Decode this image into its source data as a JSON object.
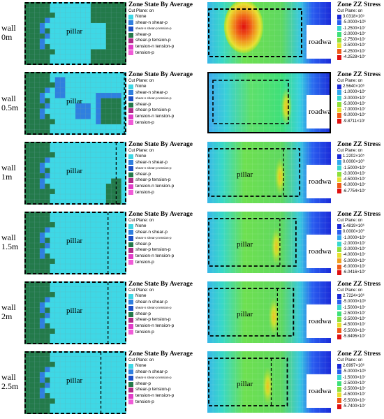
{
  "state_legend": {
    "title": "Zone State By Average",
    "subtitle": "Cut Plane: on",
    "items": [
      {
        "label": "None",
        "color": "#3ed8e6",
        "small": false
      },
      {
        "label": "shear-n shear-p",
        "color": "#2f7fe0",
        "small": false
      },
      {
        "label": "shear-n shear-p tension-p",
        "color": "#1c4fc8",
        "small": true
      },
      {
        "label": "shear-p",
        "color": "#237a4a",
        "small": false
      },
      {
        "label": "shear-p tension-p",
        "color": "#b02a8c",
        "small": false
      },
      {
        "label": "tension-n tension-p",
        "color": "#e03cc8",
        "small": false
      },
      {
        "label": "tension-p",
        "color": "#f05cd8",
        "small": false
      }
    ],
    "items_simple": [
      {
        "label": "None",
        "color": "#3ed8e6",
        "small": false
      },
      {
        "label": "shear-n shear-p",
        "color": "#2f7fe0",
        "small": false
      },
      {
        "label": "shear-n shear-p tension-p",
        "color": "#1c4fc8",
        "small": true
      },
      {
        "label": "shear-p",
        "color": "#237a4a",
        "small": false
      },
      {
        "label": "shear-p tension-p",
        "color": "#b02a8c",
        "small": false
      },
      {
        "label": "tension-n tension-p",
        "color": "#e03cc8",
        "small": false
      },
      {
        "label": "tension-p",
        "color": "#f05cd8",
        "small": false
      }
    ]
  },
  "stress_legend_colors": [
    "#1b2bd8",
    "#2a5ef0",
    "#2fa8f0",
    "#38d8d0",
    "#3ee07a",
    "#8ee03a",
    "#e8e030",
    "#f0a020",
    "#f05a18",
    "#e01010"
  ],
  "rows": [
    {
      "wall": "wall",
      "width": "0m",
      "pillar": "pillar",
      "roadway": "roadway",
      "stress_title": "Zone ZZ Stress",
      "stress_sub": "Cut Plane: on",
      "stress_values": [
        "3.0318×10⁵",
        "-5.0000×10⁶",
        "-1.2500×10⁷",
        "-2.0000×10⁷",
        "-2.7500×10⁷",
        "-3.5000×10⁷",
        "-4.2500×10⁷",
        "-4.2528×10⁷"
      ],
      "state_items": 7
    },
    {
      "wall": "wall",
      "width": "0.5m",
      "pillar": "pillar",
      "roadway": "roadway",
      "stress_title": "Zone ZZ Stress",
      "stress_sub": "Cut Plane: on",
      "stress_values": [
        "2.5640×10⁶",
        "-1.0000×10⁷",
        "-3.0000×10⁷",
        "-5.0000×10⁷",
        "-7.0000×10⁷",
        "-9.0000×10⁷",
        "-9.8711×10⁷"
      ],
      "state_items": 7
    },
    {
      "wall": "wall",
      "width": "1m",
      "pillar": "pillar",
      "roadway": "roadway",
      "stress_title": "Zone ZZ Stress",
      "stress_sub": "Cut Plane: on",
      "stress_values": [
        "1.2202×10⁵",
        "0.0000×10⁰",
        "-1.5000×10⁷",
        "-3.0000×10⁷",
        "-4.5000×10⁷",
        "-6.0000×10⁷",
        "-6.7754×10⁷"
      ],
      "state_items": 7
    },
    {
      "wall": "wall",
      "width": "1.5m",
      "pillar": "pillar",
      "roadway": "roadway",
      "stress_title": "Zone ZZ Stress",
      "stress_sub": "Cut Plane: on",
      "stress_values": [
        "5.4819×10⁶",
        "0.0000×10⁰",
        "-1.0000×10⁷",
        "-2.0000×10⁷",
        "-3.0000×10⁷",
        "-4.0000×10⁷",
        "-5.0000×10⁷",
        "-6.0000×10⁷",
        "-6.0416×10⁷"
      ],
      "state_items": 7
    },
    {
      "wall": "wall",
      "width": "2m",
      "pillar": "pillar",
      "roadway": "roadway",
      "stress_title": "Zone ZZ Stress",
      "stress_sub": "Cut Plane: on",
      "stress_values": [
        "2.7224×10⁶",
        "-5.0000×10⁶",
        "-1.5000×10⁷",
        "-2.5000×10⁷",
        "-3.5000×10⁷",
        "-4.5000×10⁷",
        "-5.5000×10⁷",
        "-5.8495×10⁷"
      ],
      "state_items": 7
    },
    {
      "wall": "wall",
      "width": "2.5m",
      "pillar": "pillar",
      "roadway": "roadway",
      "stress_title": "Zone ZZ Stress",
      "stress_sub": "Cut Plane: on",
      "stress_values": [
        "2.6997×10⁶",
        "-5.0000×10⁶",
        "-1.5000×10⁷",
        "-2.5000×10⁷",
        "-3.5000×10⁷",
        "-4.5000×10⁷",
        "-5.5000×10⁷",
        "-5.7400×10⁷"
      ],
      "state_items": 7
    }
  ]
}
